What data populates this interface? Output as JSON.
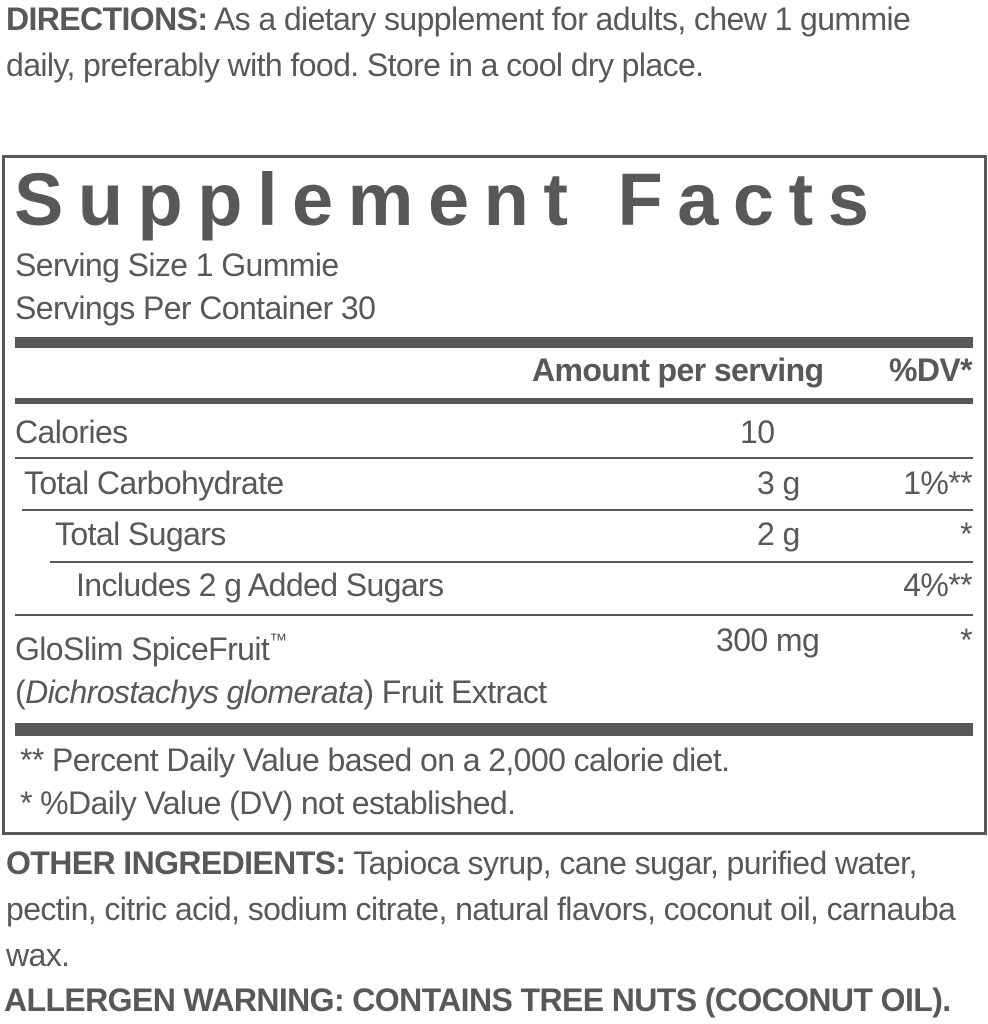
{
  "directions": {
    "label": "DIRECTIONS:",
    "text": "As a dietary supplement for adults, chew 1 gummie daily, preferably with food. Store in a cool dry place."
  },
  "facts": {
    "title": "Supplement Facts",
    "serving_size": "Serving Size 1 Gummie",
    "servings_per_container": "Servings Per Container 30",
    "header": {
      "amount": "Amount per serving",
      "dv": "%DV*"
    },
    "rows": [
      {
        "name": "Calories",
        "amount": "10"
      },
      {
        "name": "Total Carbohydrate",
        "amount": "3 g",
        "dv": "1%**"
      },
      {
        "name": "Total Sugars",
        "amount": "2 g",
        "dv": "*"
      },
      {
        "name": "Includes 2 g Added Sugars",
        "dv": "4%**"
      },
      {
        "name": "GloSlim SpiceFruit",
        "trademark": "™",
        "amount": "300 mg",
        "dv": "*",
        "open": "(",
        "latin": "Dichrostachys glomerata",
        "rest": ") Fruit Extract"
      }
    ],
    "footnotes": [
      "** Percent Daily Value based on a 2,000 calorie diet.",
      "* %Daily Value (DV) not established."
    ]
  },
  "other_ingredients": {
    "label": "OTHER INGREDIENTS:",
    "text": "Tapioca syrup, cane sugar, purified water, pectin, citric acid, sodium citrate, natural flavors, coconut oil, carnauba wax."
  },
  "allergen": "ALLERGEN WARNING: CONTAINS TREE NUTS (COCONUT OIL)."
}
